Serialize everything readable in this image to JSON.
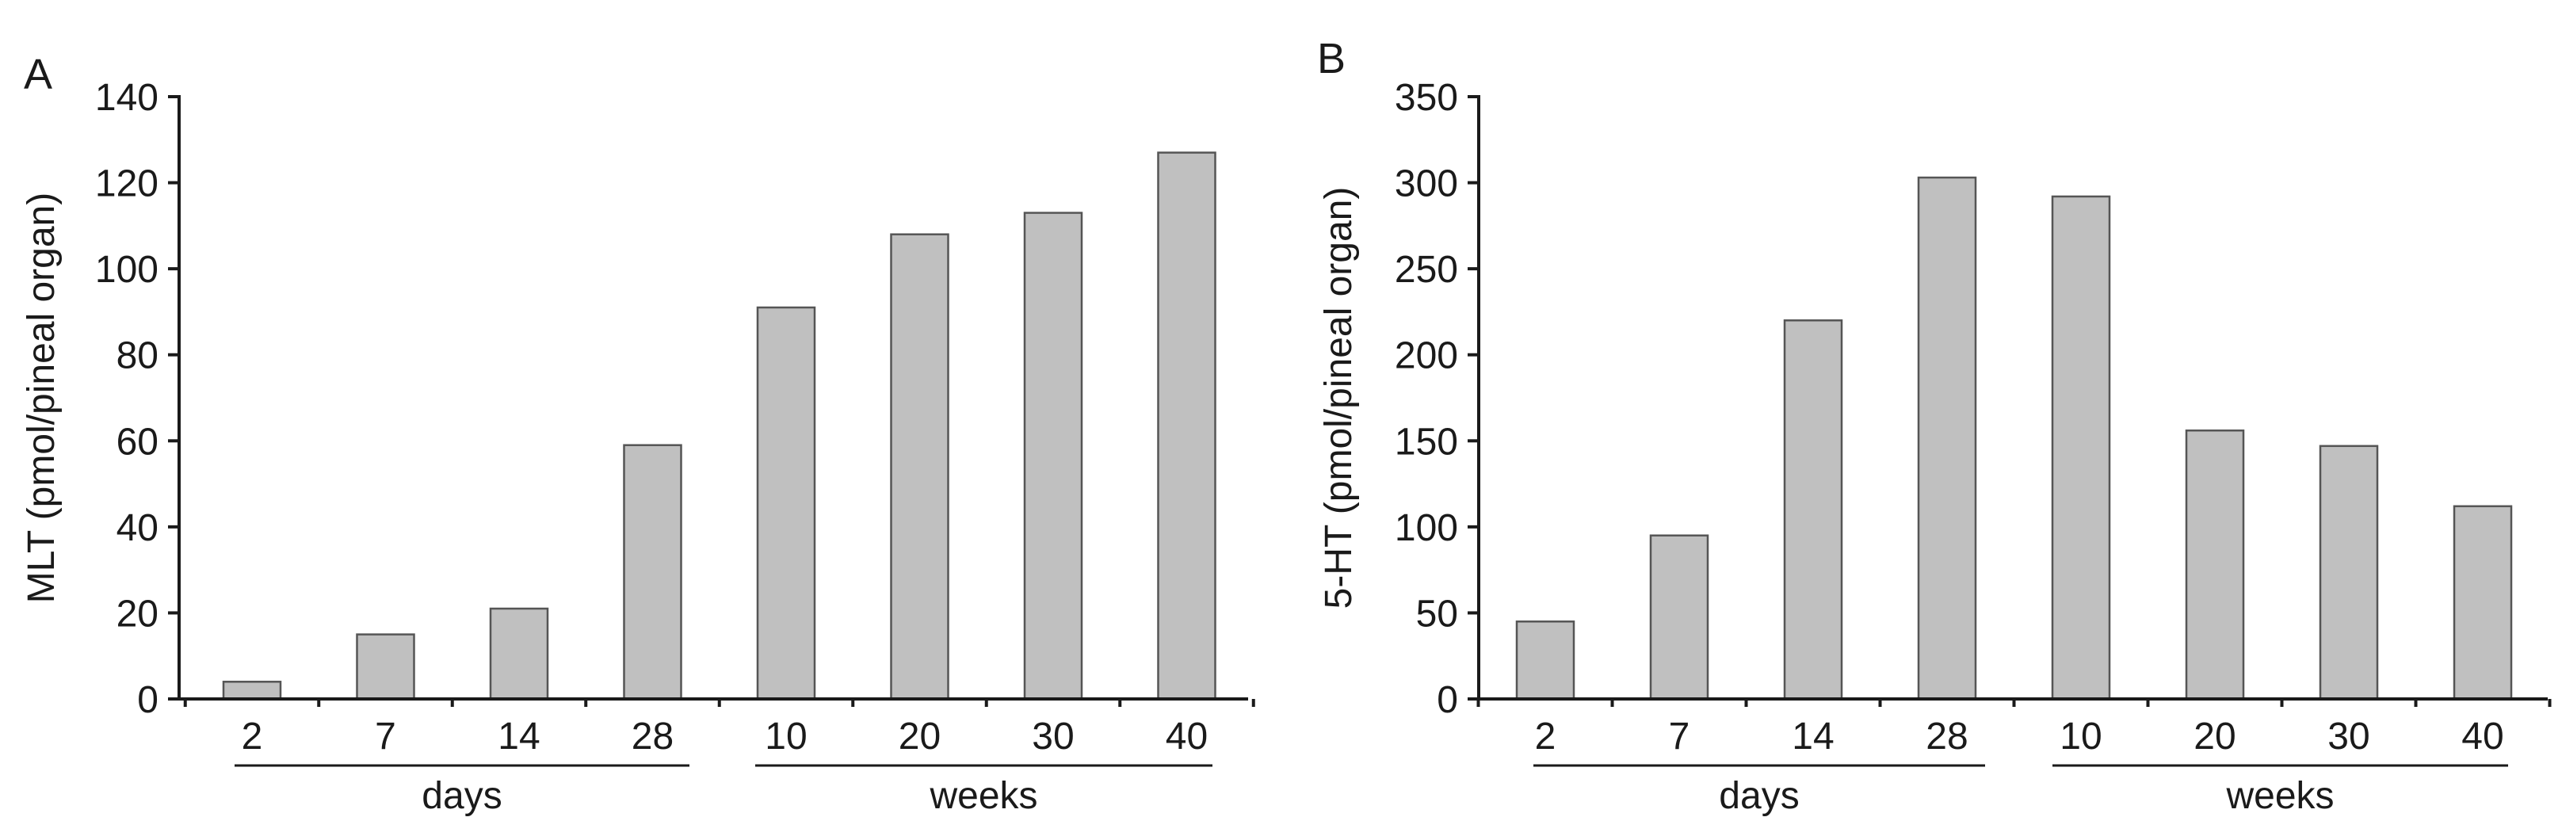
{
  "chart_data": [
    {
      "type": "bar",
      "panel_label": "A",
      "ylabel": "MLT (pmol/pineal organ)",
      "ylim": [
        0,
        140
      ],
      "yticks": [
        0,
        20,
        40,
        60,
        80,
        100,
        120,
        140
      ],
      "categories": [
        "2",
        "7",
        "14",
        "28",
        "10",
        "20",
        "30",
        "40"
      ],
      "values": [
        4,
        15,
        21,
        59,
        91,
        108,
        113,
        127
      ],
      "groups": [
        {
          "label": "days",
          "categories": [
            "2",
            "7",
            "14",
            "28"
          ]
        },
        {
          "label": "weeks",
          "categories": [
            "10",
            "20",
            "30",
            "40"
          ]
        }
      ],
      "bar_color": "#c0c0c0",
      "grid": false
    },
    {
      "type": "bar",
      "panel_label": "B",
      "ylabel": "5-HT (pmol/pineal organ)",
      "ylim": [
        0,
        350
      ],
      "yticks": [
        0,
        50,
        100,
        150,
        200,
        250,
        300,
        350
      ],
      "categories": [
        "2",
        "7",
        "14",
        "28",
        "10",
        "20",
        "30",
        "40"
      ],
      "values": [
        45,
        95,
        220,
        303,
        292,
        156,
        147,
        112
      ],
      "groups": [
        {
          "label": "days",
          "categories": [
            "2",
            "7",
            "14",
            "28"
          ]
        },
        {
          "label": "weeks",
          "categories": [
            "10",
            "20",
            "30",
            "40"
          ]
        }
      ],
      "bar_color": "#c0c0c0",
      "grid": false
    }
  ]
}
